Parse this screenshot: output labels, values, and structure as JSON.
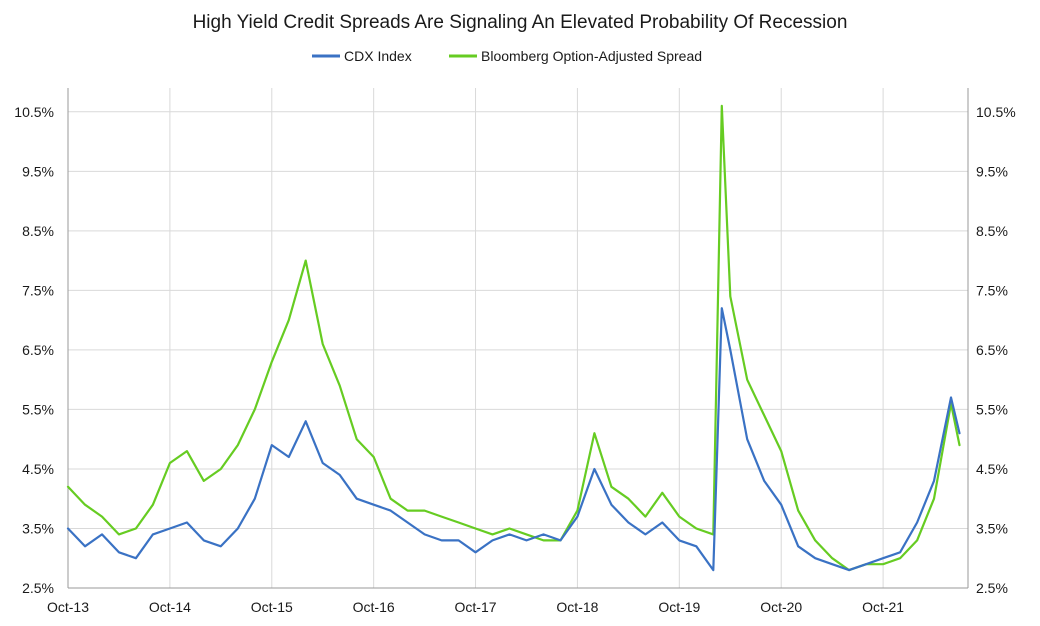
{
  "chart_data": {
    "type": "line",
    "title": "High Yield Credit Spreads Are Signaling An Elevated Probability Of Recession",
    "xlabel": "",
    "ylabel": "",
    "x_ticks": [
      "Oct-13",
      "Oct-14",
      "Oct-15",
      "Oct-16",
      "Oct-17",
      "Oct-18",
      "Oct-19",
      "Oct-20",
      "Oct-21"
    ],
    "y_ticks": [
      "2.5%",
      "3.5%",
      "4.5%",
      "5.5%",
      "6.5%",
      "7.5%",
      "8.5%",
      "9.5%",
      "10.5%"
    ],
    "ylim": [
      2.5,
      10.9
    ],
    "xlim": [
      "2013-10",
      "2022-08"
    ],
    "grid": true,
    "legend_position": "top-center",
    "x": [
      "2013-10",
      "2013-12",
      "2014-02",
      "2014-04",
      "2014-06",
      "2014-08",
      "2014-10",
      "2014-12",
      "2015-02",
      "2015-04",
      "2015-06",
      "2015-08",
      "2015-10",
      "2015-12",
      "2016-02",
      "2016-04",
      "2016-06",
      "2016-08",
      "2016-10",
      "2016-12",
      "2017-02",
      "2017-04",
      "2017-06",
      "2017-08",
      "2017-10",
      "2017-12",
      "2018-02",
      "2018-04",
      "2018-06",
      "2018-08",
      "2018-10",
      "2018-12",
      "2019-02",
      "2019-04",
      "2019-06",
      "2019-08",
      "2019-10",
      "2019-12",
      "2020-02",
      "2020-03",
      "2020-04",
      "2020-06",
      "2020-08",
      "2020-10",
      "2020-12",
      "2021-02",
      "2021-04",
      "2021-06",
      "2021-08",
      "2021-10",
      "2021-12",
      "2022-02",
      "2022-04",
      "2022-06",
      "2022-07"
    ],
    "series": [
      {
        "name": "CDX Index",
        "color": "#3a72c4",
        "values": [
          3.5,
          3.2,
          3.4,
          3.1,
          3.0,
          3.4,
          3.5,
          3.6,
          3.3,
          3.2,
          3.5,
          4.0,
          4.9,
          4.7,
          5.3,
          4.6,
          4.4,
          4.0,
          3.9,
          3.8,
          3.6,
          3.4,
          3.3,
          3.3,
          3.1,
          3.3,
          3.4,
          3.3,
          3.4,
          3.3,
          3.7,
          4.5,
          3.9,
          3.6,
          3.4,
          3.6,
          3.3,
          3.2,
          2.8,
          7.2,
          6.5,
          5.0,
          4.3,
          3.9,
          3.2,
          3.0,
          2.9,
          2.8,
          2.9,
          3.0,
          3.1,
          3.6,
          4.3,
          5.7,
          5.1
        ]
      },
      {
        "name": "Bloomberg Option-Adjusted Spread",
        "color": "#66cc22",
        "values": [
          4.2,
          3.9,
          3.7,
          3.4,
          3.5,
          3.9,
          4.6,
          4.8,
          4.3,
          4.5,
          4.9,
          5.5,
          6.3,
          7.0,
          8.0,
          6.6,
          5.9,
          5.0,
          4.7,
          4.0,
          3.8,
          3.8,
          3.7,
          3.6,
          3.5,
          3.4,
          3.5,
          3.4,
          3.3,
          3.3,
          3.8,
          5.1,
          4.2,
          4.0,
          3.7,
          4.1,
          3.7,
          3.5,
          3.4,
          10.6,
          7.4,
          6.0,
          5.4,
          4.8,
          3.8,
          3.3,
          3.0,
          2.8,
          2.9,
          2.9,
          3.0,
          3.3,
          4.0,
          5.6,
          4.9
        ]
      }
    ]
  }
}
